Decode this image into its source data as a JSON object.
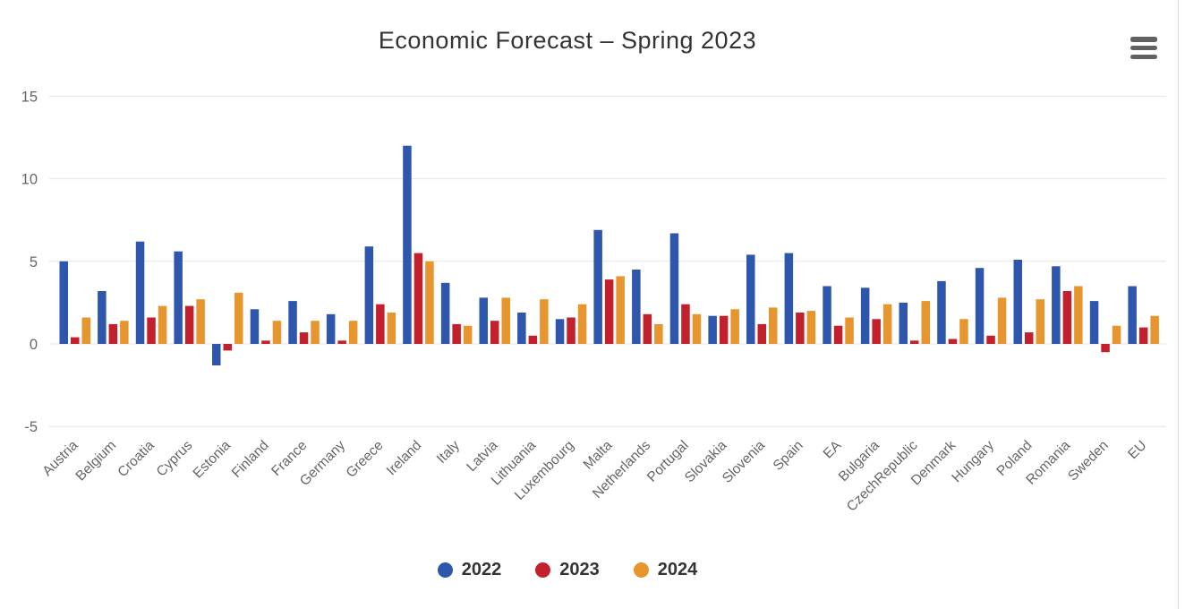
{
  "chart": {
    "title": "Economic Forecast – Spring 2023",
    "menu_icon": "hamburger-menu-icon"
  },
  "chart_data": {
    "type": "bar",
    "title": "Economic Forecast – Spring 2023",
    "xlabel": "",
    "ylabel": "",
    "grid": true,
    "legend_position": "bottom",
    "ylim": [
      -5,
      15.5
    ],
    "yticks": [
      15,
      10,
      5,
      0,
      -5
    ],
    "categories": [
      "Austria",
      "Belgium",
      "Croatia",
      "Cyprus",
      "Estonia",
      "Finland",
      "France",
      "Germany",
      "Greece",
      "Ireland",
      "Italy",
      "Latvia",
      "Lithuania",
      "Luxembourg",
      "Malta",
      "Netherlands",
      "Portugal",
      "Slovakia",
      "Slovenia",
      "Spain",
      "EA",
      "Bulgaria",
      "CzechRepublic",
      "Denmark",
      "Hungary",
      "Poland",
      "Romania",
      "Sweden",
      "EU"
    ],
    "series": [
      {
        "name": "2022",
        "color": "#2d56ac",
        "values": [
          5.0,
          3.2,
          6.2,
          5.6,
          -1.3,
          2.1,
          2.6,
          1.8,
          5.9,
          12.0,
          3.7,
          2.8,
          1.9,
          1.5,
          6.9,
          4.5,
          6.7,
          1.7,
          5.4,
          5.5,
          3.5,
          3.4,
          2.5,
          3.8,
          4.6,
          5.1,
          4.7,
          2.6,
          3.5
        ]
      },
      {
        "name": "2023",
        "color": "#c1202c",
        "values": [
          0.4,
          1.2,
          1.6,
          2.3,
          -0.4,
          0.2,
          0.7,
          0.2,
          2.4,
          5.5,
          1.2,
          1.4,
          0.5,
          1.6,
          3.9,
          1.8,
          2.4,
          1.7,
          1.2,
          1.9,
          1.1,
          1.5,
          0.2,
          0.3,
          0.5,
          0.7,
          3.2,
          -0.5,
          1.0
        ]
      },
      {
        "name": "2024",
        "color": "#e6952f",
        "values": [
          1.6,
          1.4,
          2.3,
          2.7,
          3.1,
          1.4,
          1.4,
          1.4,
          1.9,
          5.0,
          1.1,
          2.8,
          2.7,
          2.4,
          4.1,
          1.2,
          1.8,
          2.1,
          2.2,
          2.0,
          1.6,
          2.4,
          2.6,
          1.5,
          2.8,
          2.7,
          3.5,
          1.1,
          1.7
        ]
      }
    ],
    "layout_colors": {
      "grid": "#e6e6e6",
      "axis_label": "#666666",
      "title_text": "#333333"
    }
  }
}
